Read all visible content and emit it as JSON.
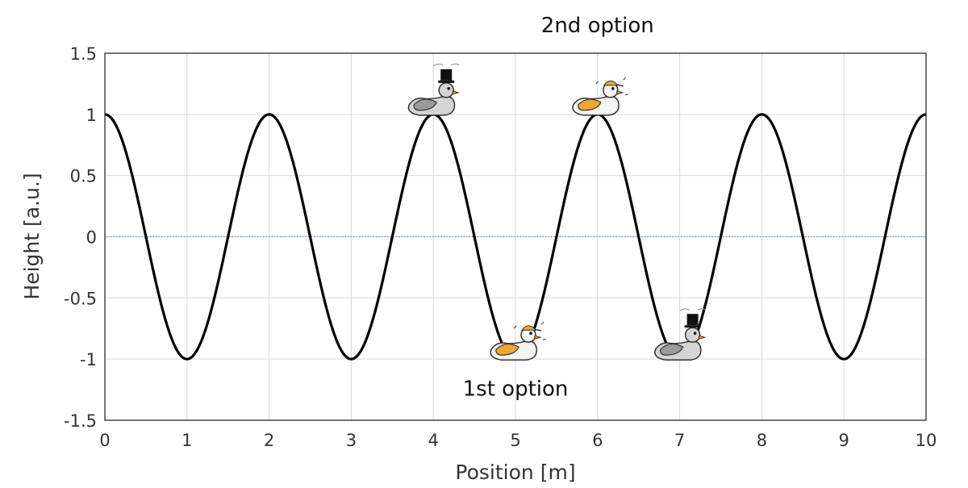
{
  "chart_data": {
    "type": "line",
    "xlabel": "Position [m]",
    "ylabel": "Height [a.u.]",
    "xlim": [
      0,
      10
    ],
    "ylim": [
      -1.5,
      1.5
    ],
    "x_ticks": [
      0,
      1,
      2,
      3,
      4,
      5,
      6,
      7,
      8,
      9,
      10
    ],
    "y_ticks": [
      1.5,
      1,
      0.5,
      0,
      -0.5,
      -1,
      -1.5
    ],
    "y_tick_labels": [
      "1.5",
      "1",
      "0.5",
      "0",
      "-0.5",
      "-1",
      "-1.5"
    ],
    "grid": true,
    "series": [
      {
        "function": "cos(pi * x)",
        "x": [
          0,
          0.5,
          1,
          1.5,
          2,
          2.5,
          3,
          3.5,
          4,
          4.5,
          5,
          5.5,
          6,
          6.5,
          7,
          7.5,
          8,
          8.5,
          9,
          9.5,
          10
        ],
        "values": [
          1,
          0,
          -1,
          0,
          1,
          0,
          -1,
          0,
          1,
          0,
          -1,
          0,
          1,
          0,
          -1,
          0,
          1,
          0,
          -1,
          0,
          1
        ],
        "color": "#000000"
      }
    ],
    "zero_line": {
      "y": 0,
      "color": "#4a7bb0",
      "style": "dotted"
    },
    "annotations": [
      {
        "text": "2nd option",
        "x": 6.0,
        "y": 1.73
      },
      {
        "text": "1st option",
        "x": 5.0,
        "y": -1.24
      }
    ],
    "markers": [
      {
        "icon": "duck-top-hat-icon",
        "x": 4.0,
        "y": 1.0,
        "colors": {
          "body": "#d4d4d4",
          "wing": "#9a9a9a",
          "hat": "#111111"
        }
      },
      {
        "icon": "duck-cap-icon",
        "x": 6.0,
        "y": 1.0,
        "colors": {
          "body": "#f4f4f4",
          "wing": "#f2a72e",
          "hat": "#f2a72e"
        }
      },
      {
        "icon": "duck-cap-icon",
        "x": 5.0,
        "y": -1.0,
        "colors": {
          "body": "#f4f4f4",
          "wing": "#f2a72e",
          "hat": "#f2a72e"
        }
      },
      {
        "icon": "duck-top-hat-icon",
        "x": 7.0,
        "y": -1.0,
        "colors": {
          "body": "#d4d4d4",
          "wing": "#9a9a9a",
          "hat": "#111111"
        }
      }
    ]
  }
}
